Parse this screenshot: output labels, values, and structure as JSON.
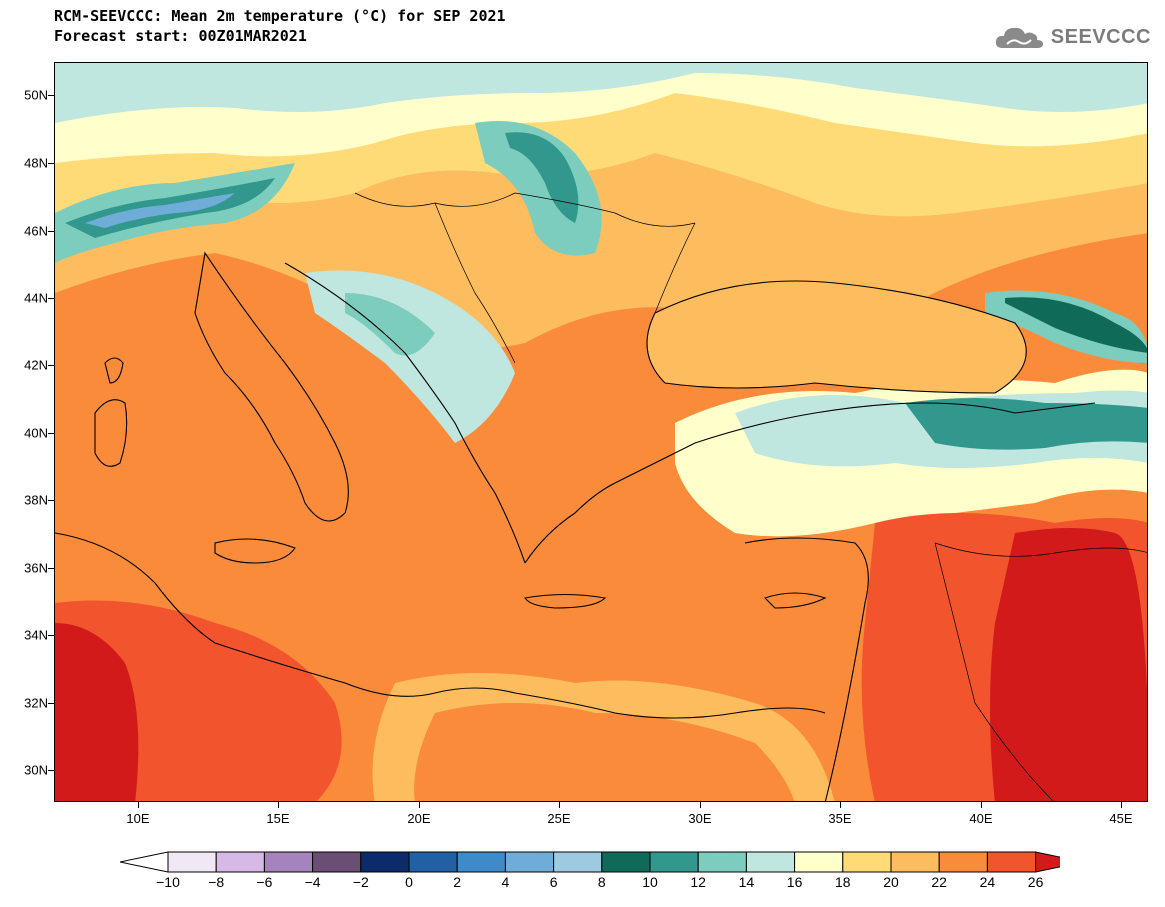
{
  "title": {
    "line1": "RCM-SEEVCCC: Mean 2m temperature (°C) for SEP 2021",
    "line2": "Forecast start: 00Z01MAR2021"
  },
  "logo": {
    "text": "SEEVCCC",
    "icon": "cloud-icon"
  },
  "map": {
    "lat_labels": [
      "50N",
      "48N",
      "46N",
      "44N",
      "42N",
      "40N",
      "38N",
      "36N",
      "34N",
      "32N",
      "30N"
    ],
    "lon_labels": [
      "10E",
      "15E",
      "20E",
      "25E",
      "30E",
      "35E",
      "40E",
      "45E"
    ],
    "lat_values": [
      50,
      48,
      46,
      44,
      42,
      40,
      38,
      36,
      34,
      32,
      30
    ],
    "lon_values": [
      10,
      15,
      20,
      25,
      30,
      35,
      40,
      45
    ],
    "lat_range": [
      29,
      51
    ],
    "lon_range": [
      7,
      46
    ],
    "variable": "Mean 2m temperature",
    "unit": "°C"
  },
  "colorbar": {
    "labels": [
      "−10",
      "−8",
      "−6",
      "−4",
      "−2",
      "0",
      "2",
      "4",
      "6",
      "8",
      "10",
      "12",
      "14",
      "16",
      "18",
      "20",
      "22",
      "24",
      "26"
    ],
    "colors": [
      "#f1e8f6",
      "#d7b9e7",
      "#a583bd",
      "#6b4e73",
      "#0b2b6b",
      "#2060a3",
      "#3f8bc9",
      "#70acd8",
      "#9ecae1",
      "#0f6a58",
      "#32978c",
      "#7ccdbd",
      "#bfe7e0",
      "#ffffcc",
      "#ffdb78",
      "#fdbc5e",
      "#f98b3a",
      "#f2542d"
    ],
    "under_color": "#ffffff",
    "over_color": "#d21a1a"
  }
}
